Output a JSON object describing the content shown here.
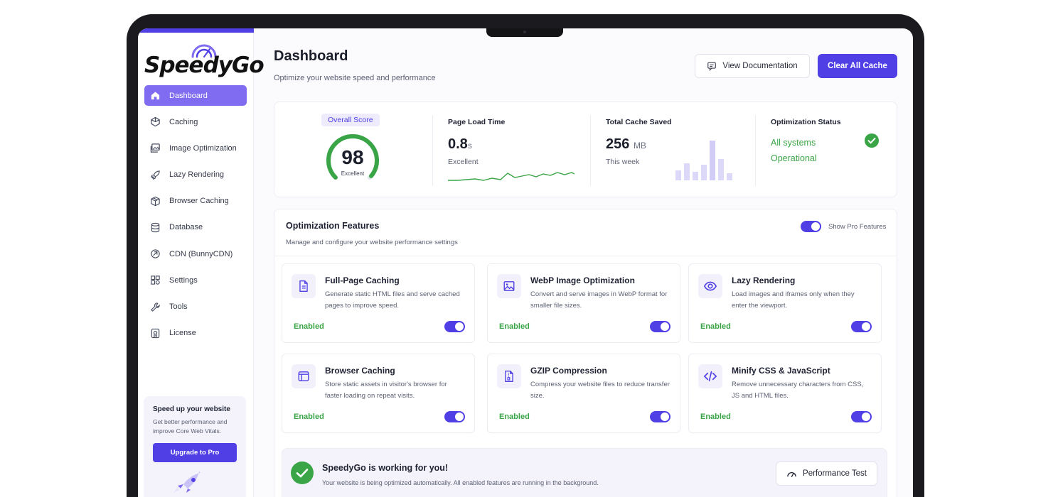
{
  "brand": {
    "name": "SpeedyGo"
  },
  "colors": {
    "accent": "#4f3fe5",
    "accent_light": "#7f6cf0",
    "success": "#3aa547"
  },
  "sidebar": {
    "items": [
      {
        "label": "Dashboard",
        "icon": "home-icon",
        "active": true
      },
      {
        "label": "Caching",
        "icon": "cube-icon"
      },
      {
        "label": "Image Optimization",
        "icon": "images-icon"
      },
      {
        "label": "Lazy Rendering",
        "icon": "rocket-icon"
      },
      {
        "label": "Browser Caching",
        "icon": "package-icon"
      },
      {
        "label": "Database",
        "icon": "database-icon"
      },
      {
        "label": "CDN (BunnyCDN)",
        "icon": "cdn-icon"
      },
      {
        "label": "Settings",
        "icon": "grid-icon"
      },
      {
        "label": "Tools",
        "icon": "wrench-icon"
      },
      {
        "label": "License",
        "icon": "license-icon"
      }
    ],
    "upgrade": {
      "title": "Speed up your website",
      "desc": "Get better performance and improve Core Web Vitals.",
      "button": "Upgrade to Pro"
    }
  },
  "header": {
    "title": "Dashboard",
    "subtitle": "Optimize your website speed and performance",
    "doc_button": "View Documentation",
    "clear_button": "Clear All Cache"
  },
  "stats": {
    "score": {
      "badge": "Overall Score",
      "value": "98",
      "label": "Excellent",
      "percent": 98
    },
    "load_time": {
      "label": "Page Load Time",
      "value": "0.8",
      "unit": "s",
      "sub": "Excellent"
    },
    "cache": {
      "label": "Total Cache Saved",
      "value": "256",
      "unit": "MB",
      "sub": "This week"
    },
    "status": {
      "label": "Optimization Status",
      "line1": "All systems",
      "line2": "Operational"
    }
  },
  "features": {
    "title": "Optimization Features",
    "subtitle": "Manage and configure your website performance settings",
    "pro_toggle_label": "Show Pro Features",
    "items": [
      {
        "title": "Full-Page Caching",
        "desc": "Generate static HTML files and serve cached pages to improve speed.",
        "status": "Enabled",
        "icon": "document-icon"
      },
      {
        "title": "WebP Image Optimization",
        "desc": "Convert and serve images in WebP format for smaller file sizes.",
        "status": "Enabled",
        "icon": "image-icon"
      },
      {
        "title": "Lazy Rendering",
        "desc": "Load images and iframes only when they enter the viewport.",
        "status": "Enabled",
        "icon": "eye-icon"
      },
      {
        "title": "Browser Caching",
        "desc": "Store static assets in visitor's browser for faster loading on repeat visits.",
        "status": "Enabled",
        "icon": "browser-icon"
      },
      {
        "title": "GZIP Compression",
        "desc": "Compress your website files to reduce transfer size.",
        "status": "Enabled",
        "icon": "zip-icon"
      },
      {
        "title": "Minify CSS & JavaScript",
        "desc": "Remove unnecessary characters from CSS, JS and HTML files.",
        "status": "Enabled",
        "icon": "code-icon"
      }
    ]
  },
  "banner": {
    "title": "SpeedyGo is working for you!",
    "desc": "Your website is being optimized automatically. All enabled features are running in the background.",
    "button": "Performance Test"
  }
}
